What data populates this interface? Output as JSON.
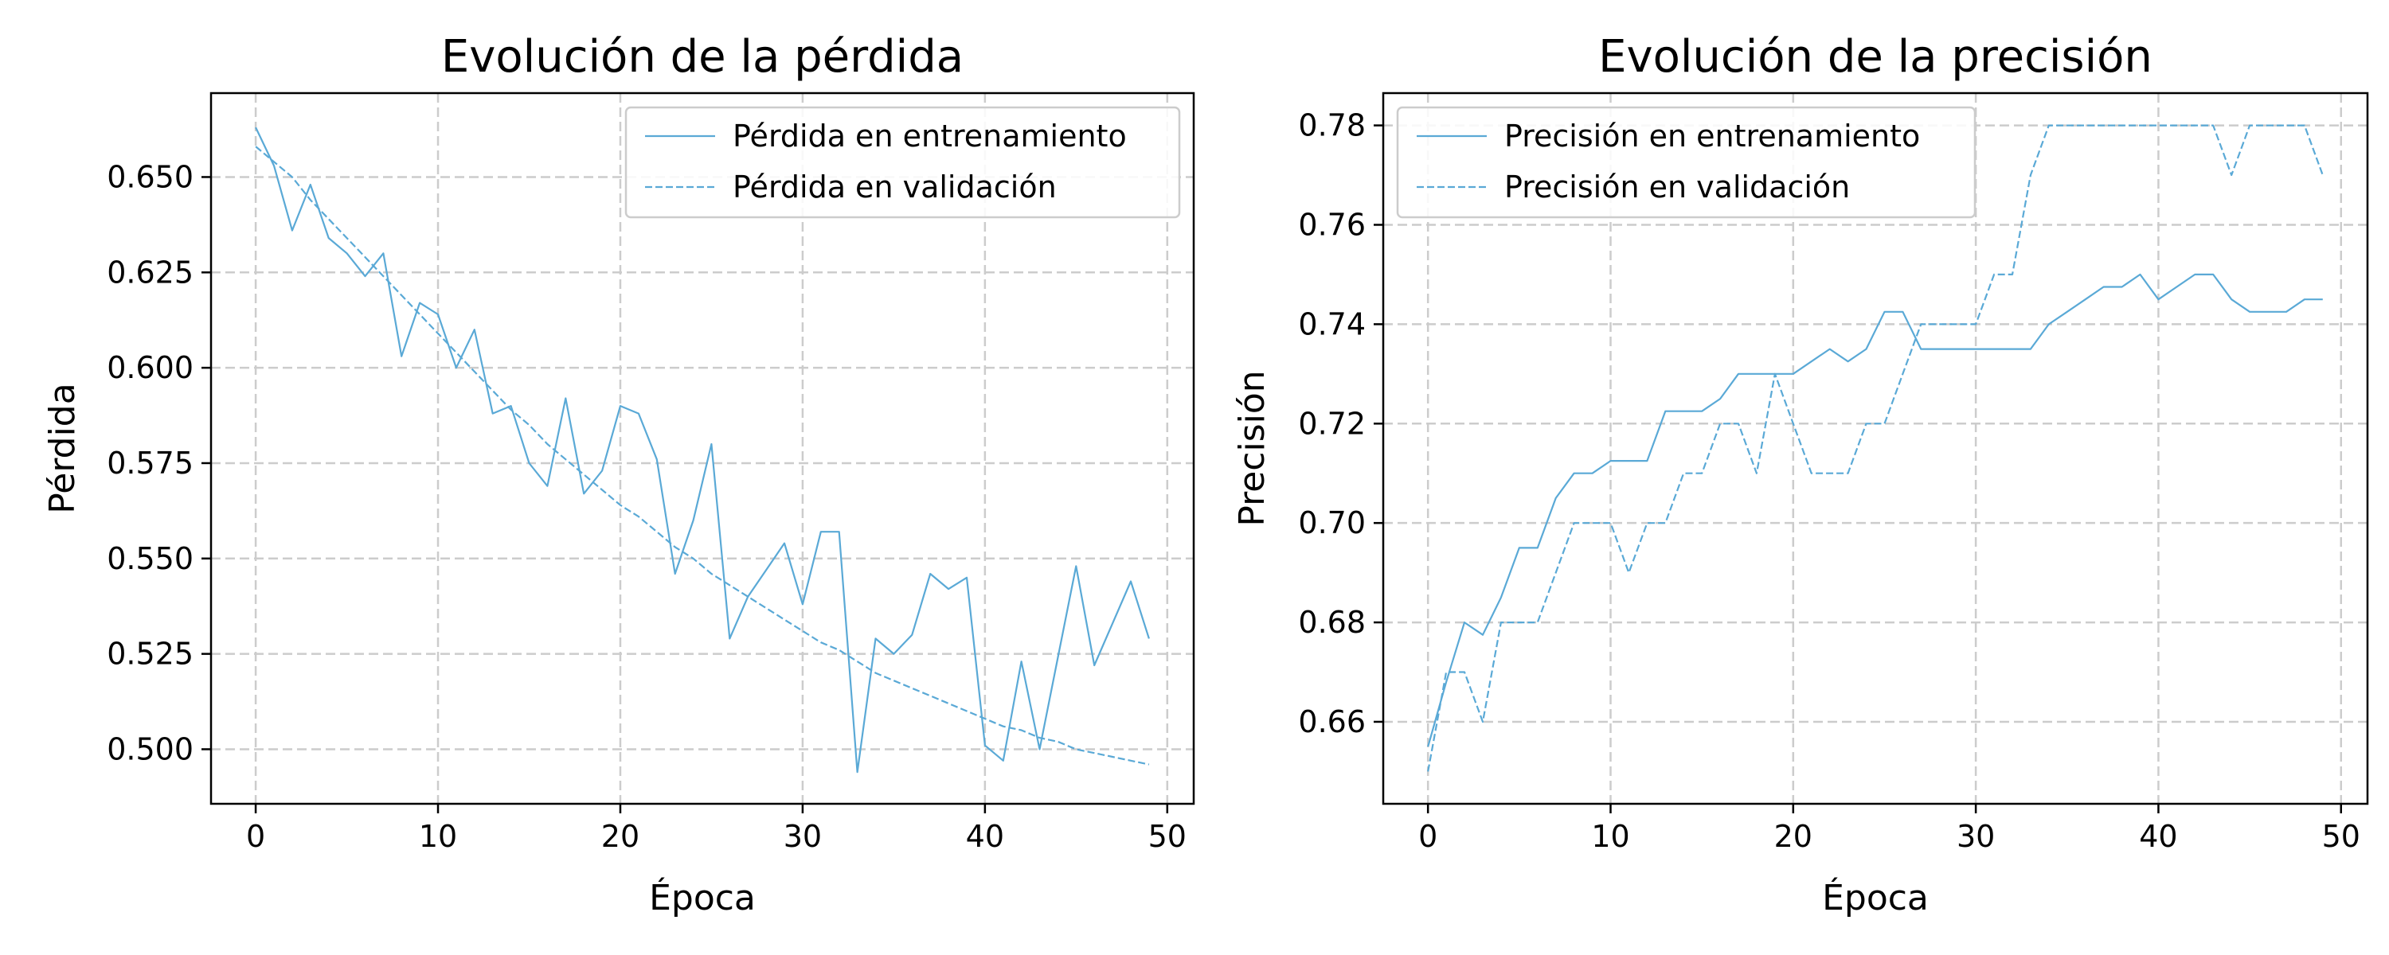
{
  "colors": {
    "series": "#5aa9d6",
    "grid": "#cccccc",
    "axis": "#000000",
    "legend_border": "#cccccc"
  },
  "chart_data": [
    {
      "type": "line",
      "title": "Evolución de la pérdida",
      "xlabel": "Época",
      "ylabel": "Pérdida",
      "xlim": [
        -2.45,
        51.45
      ],
      "ylim": [
        0.4857,
        0.672
      ],
      "xticks": [
        0,
        10,
        20,
        30,
        40,
        50
      ],
      "yticks": [
        0.5,
        0.525,
        0.55,
        0.575,
        0.6,
        0.625,
        0.65
      ],
      "ytick_labels": [
        "0.500",
        "0.525",
        "0.550",
        "0.575",
        "0.600",
        "0.625",
        "0.650"
      ],
      "grid": true,
      "legend_position": "top-right",
      "x": [
        0,
        1,
        2,
        3,
        4,
        5,
        6,
        7,
        8,
        9,
        10,
        11,
        12,
        13,
        14,
        15,
        16,
        17,
        18,
        19,
        20,
        21,
        22,
        23,
        24,
        25,
        26,
        27,
        28,
        29,
        30,
        31,
        32,
        33,
        34,
        35,
        36,
        37,
        38,
        39,
        40,
        41,
        42,
        43,
        44,
        45,
        46,
        47,
        48,
        49
      ],
      "series": [
        {
          "name": "Pérdida en entrenamiento",
          "style": "solid",
          "values": [
            0.663,
            0.653,
            0.636,
            0.648,
            0.634,
            0.63,
            0.624,
            0.63,
            0.603,
            0.617,
            0.614,
            0.6,
            0.61,
            0.588,
            0.59,
            0.575,
            0.569,
            0.592,
            0.567,
            0.573,
            0.59,
            0.588,
            0.576,
            0.546,
            0.56,
            0.58,
            0.529,
            0.54,
            0.547,
            0.554,
            0.538,
            0.557,
            0.557,
            0.494,
            0.529,
            0.525,
            0.53,
            0.546,
            0.542,
            0.545,
            0.501,
            0.497,
            0.523,
            0.5,
            0.524,
            0.548,
            0.522,
            0.533,
            0.544,
            0.529
          ]
        },
        {
          "name": "Pérdida en validación",
          "style": "dashed",
          "values": [
            0.658,
            0.654,
            0.65,
            0.644,
            0.639,
            0.634,
            0.629,
            0.624,
            0.619,
            0.614,
            0.609,
            0.604,
            0.599,
            0.594,
            0.589,
            0.585,
            0.58,
            0.576,
            0.572,
            0.568,
            0.564,
            0.561,
            0.557,
            0.553,
            0.55,
            0.546,
            0.543,
            0.54,
            0.537,
            0.534,
            0.531,
            0.528,
            0.526,
            0.523,
            0.52,
            0.518,
            0.516,
            0.514,
            0.512,
            0.51,
            0.508,
            0.506,
            0.505,
            0.503,
            0.502,
            0.5,
            0.499,
            0.498,
            0.497,
            0.496
          ]
        }
      ]
    },
    {
      "type": "line",
      "title": "Evolución de la precisión",
      "xlabel": "Época",
      "ylabel": "Precisión",
      "xlim": [
        -2.45,
        51.45
      ],
      "ylim": [
        0.6435,
        0.7865
      ],
      "xticks": [
        0,
        10,
        20,
        30,
        40,
        50
      ],
      "yticks": [
        0.66,
        0.68,
        0.7,
        0.72,
        0.74,
        0.76,
        0.78
      ],
      "ytick_labels": [
        "0.66",
        "0.68",
        "0.70",
        "0.72",
        "0.74",
        "0.76",
        "0.78"
      ],
      "grid": true,
      "legend_position": "top-left",
      "x": [
        0,
        1,
        2,
        3,
        4,
        5,
        6,
        7,
        8,
        9,
        10,
        11,
        12,
        13,
        14,
        15,
        16,
        17,
        18,
        19,
        20,
        21,
        22,
        23,
        24,
        25,
        26,
        27,
        28,
        29,
        30,
        31,
        32,
        33,
        34,
        35,
        36,
        37,
        38,
        39,
        40,
        41,
        42,
        43,
        44,
        45,
        46,
        47,
        48,
        49
      ],
      "series": [
        {
          "name": "Precisión en entrenamiento",
          "style": "solid",
          "values": [
            0.655,
            0.668,
            0.68,
            0.6775,
            0.685,
            0.695,
            0.695,
            0.705,
            0.71,
            0.71,
            0.7125,
            0.7125,
            0.7125,
            0.7225,
            0.7225,
            0.7225,
            0.725,
            0.73,
            0.73,
            0.73,
            0.73,
            0.7325,
            0.735,
            0.7325,
            0.735,
            0.7425,
            0.7425,
            0.735,
            0.735,
            0.735,
            0.735,
            0.735,
            0.735,
            0.735,
            0.74,
            0.7425,
            0.745,
            0.7475,
            0.7475,
            0.75,
            0.745,
            0.7475,
            0.75,
            0.75,
            0.745,
            0.7425,
            0.7425,
            0.7425,
            0.745,
            0.745
          ]
        },
        {
          "name": "Precisión en validación",
          "style": "dashed",
          "values": [
            0.65,
            0.67,
            0.67,
            0.66,
            0.68,
            0.68,
            0.68,
            0.69,
            0.7,
            0.7,
            0.7,
            0.69,
            0.7,
            0.7,
            0.71,
            0.71,
            0.72,
            0.72,
            0.71,
            0.73,
            0.72,
            0.71,
            0.71,
            0.71,
            0.72,
            0.72,
            0.73,
            0.74,
            0.74,
            0.74,
            0.74,
            0.75,
            0.75,
            0.77,
            0.78,
            0.78,
            0.78,
            0.78,
            0.78,
            0.78,
            0.78,
            0.78,
            0.78,
            0.78,
            0.77,
            0.78,
            0.78,
            0.78,
            0.78,
            0.77
          ]
        }
      ]
    }
  ]
}
